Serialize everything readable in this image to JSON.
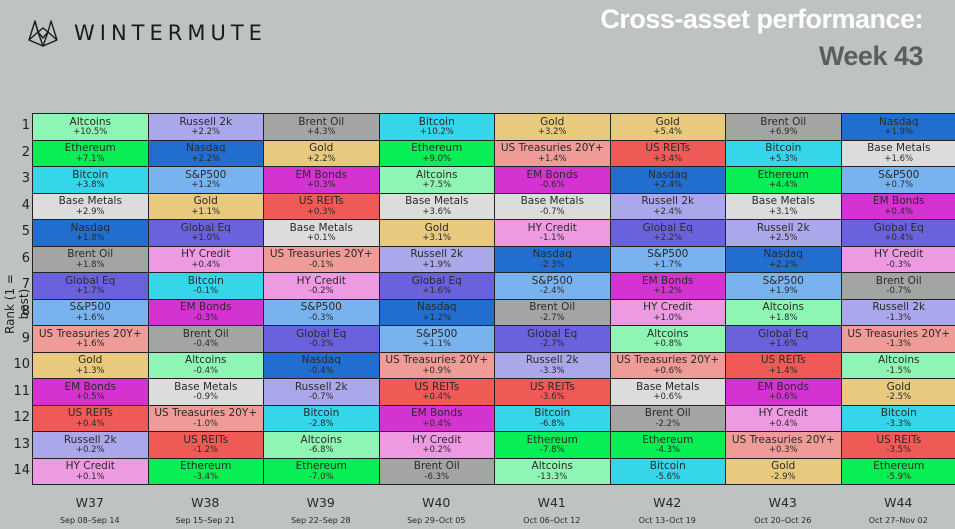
{
  "header": {
    "brand": "WINTERMUTE",
    "logo_icon": "wintermute-fox-logo-icon",
    "title_line1": "Cross-asset performance:",
    "title_line2": "Week 43"
  },
  "colors": {
    "Altcoins": "#8ff5b4",
    "Ethereum": "#07ef55",
    "Bitcoin": "#35d6ea",
    "Base Metals": "#dcdcdc",
    "Nasdaq": "#226ecf",
    "Brent Oil": "#a3a5a3",
    "Global Eq": "#6a62dc",
    "S&P500": "#79b3ef",
    "US Treasuries 20Y+": "#ef9c98",
    "Gold": "#e8c97e",
    "EM Bonds": "#d433d1",
    "US REITs": "#ef5a57",
    "Russell 2k": "#aaa8ea",
    "HY Credit": "#ee9ae3"
  },
  "chart_data": {
    "type": "table",
    "title": "Cross-asset performance: Week 43",
    "ylabel": "Rank (1 = best)",
    "xlabel": "",
    "ranks": [
      1,
      2,
      3,
      4,
      5,
      6,
      7,
      8,
      9,
      10,
      11,
      12,
      13,
      14
    ],
    "columns": [
      {
        "week": "W37",
        "range": "Sep 08–Sep 14",
        "cells": [
          {
            "asset": "Altcoins",
            "value": "+10.5%"
          },
          {
            "asset": "Ethereum",
            "value": "+7.1%"
          },
          {
            "asset": "Bitcoin",
            "value": "+3.8%"
          },
          {
            "asset": "Base Metals",
            "value": "+2.9%"
          },
          {
            "asset": "Nasdaq",
            "value": "+1.8%"
          },
          {
            "asset": "Brent Oil",
            "value": "+1.8%"
          },
          {
            "asset": "Global Eq",
            "value": "+1.7%"
          },
          {
            "asset": "S&P500",
            "value": "+1.6%"
          },
          {
            "asset": "US Treasuries 20Y+",
            "value": "+1.6%"
          },
          {
            "asset": "Gold",
            "value": "+1.3%"
          },
          {
            "asset": "EM Bonds",
            "value": "+0.5%"
          },
          {
            "asset": "US REITs",
            "value": "+0.4%"
          },
          {
            "asset": "Russell 2k",
            "value": "+0.2%"
          },
          {
            "asset": "HY Credit",
            "value": "+0.1%"
          }
        ]
      },
      {
        "week": "W38",
        "range": "Sep 15–Sep 21",
        "cells": [
          {
            "asset": "Russell 2k",
            "value": "+2.2%"
          },
          {
            "asset": "Nasdaq",
            "value": "+2.2%"
          },
          {
            "asset": "S&P500",
            "value": "+1.2%"
          },
          {
            "asset": "Gold",
            "value": "+1.1%"
          },
          {
            "asset": "Global Eq",
            "value": "+1.0%"
          },
          {
            "asset": "HY Credit",
            "value": "+0.4%"
          },
          {
            "asset": "Bitcoin",
            "value": "-0.1%"
          },
          {
            "asset": "EM Bonds",
            "value": "-0.3%"
          },
          {
            "asset": "Brent Oil",
            "value": "-0.4%"
          },
          {
            "asset": "Altcoins",
            "value": "-0.4%"
          },
          {
            "asset": "Base Metals",
            "value": "-0.9%"
          },
          {
            "asset": "US Treasuries 20Y+",
            "value": "-1.0%"
          },
          {
            "asset": "US REITs",
            "value": "-1.2%"
          },
          {
            "asset": "Ethereum",
            "value": "-3.4%"
          }
        ]
      },
      {
        "week": "W39",
        "range": "Sep 22–Sep 28",
        "cells": [
          {
            "asset": "Brent Oil",
            "value": "+4.3%"
          },
          {
            "asset": "Gold",
            "value": "+2.2%"
          },
          {
            "asset": "EM Bonds",
            "value": "+0.3%"
          },
          {
            "asset": "US REITs",
            "value": "+0.3%"
          },
          {
            "asset": "Base Metals",
            "value": "+0.1%"
          },
          {
            "asset": "US Treasuries 20Y+",
            "value": "-0.1%"
          },
          {
            "asset": "HY Credit",
            "value": "-0.2%"
          },
          {
            "asset": "S&P500",
            "value": "-0.3%"
          },
          {
            "asset": "Global Eq",
            "value": "-0.3%"
          },
          {
            "asset": "Nasdaq",
            "value": "-0.4%"
          },
          {
            "asset": "Russell 2k",
            "value": "-0.7%"
          },
          {
            "asset": "Bitcoin",
            "value": "-2.8%"
          },
          {
            "asset": "Altcoins",
            "value": "-6.8%"
          },
          {
            "asset": "Ethereum",
            "value": "-7.0%"
          }
        ]
      },
      {
        "week": "W40",
        "range": "Sep 29–Oct 05",
        "cells": [
          {
            "asset": "Bitcoin",
            "value": "+10.2%"
          },
          {
            "asset": "Ethereum",
            "value": "+9.0%"
          },
          {
            "asset": "Altcoins",
            "value": "+7.5%"
          },
          {
            "asset": "Base Metals",
            "value": "+3.6%"
          },
          {
            "asset": "Gold",
            "value": "+3.1%"
          },
          {
            "asset": "Russell 2k",
            "value": "+1.9%"
          },
          {
            "asset": "Global Eq",
            "value": "+1.6%"
          },
          {
            "asset": "Nasdaq",
            "value": "+1.2%"
          },
          {
            "asset": "S&P500",
            "value": "+1.1%"
          },
          {
            "asset": "US Treasuries 20Y+",
            "value": "+0.9%"
          },
          {
            "asset": "US REITs",
            "value": "+0.4%"
          },
          {
            "asset": "EM Bonds",
            "value": "+0.4%"
          },
          {
            "asset": "HY Credit",
            "value": "+0.2%"
          },
          {
            "asset": "Brent Oil",
            "value": "-6.3%"
          }
        ]
      },
      {
        "week": "W41",
        "range": "Oct 06–Oct 12",
        "cells": [
          {
            "asset": "Gold",
            "value": "+3.2%"
          },
          {
            "asset": "US Treasuries 20Y+",
            "value": "+1.4%"
          },
          {
            "asset": "EM Bonds",
            "value": "-0.6%"
          },
          {
            "asset": "Base Metals",
            "value": "-0.7%"
          },
          {
            "asset": "HY Credit",
            "value": "-1.1%"
          },
          {
            "asset": "Nasdaq",
            "value": "-2.3%"
          },
          {
            "asset": "S&P500",
            "value": "-2.4%"
          },
          {
            "asset": "Brent Oil",
            "value": "-2.7%"
          },
          {
            "asset": "Global Eq",
            "value": "-2.7%"
          },
          {
            "asset": "Russell 2k",
            "value": "-3.3%"
          },
          {
            "asset": "US REITs",
            "value": "-3.6%"
          },
          {
            "asset": "Bitcoin",
            "value": "-6.8%"
          },
          {
            "asset": "Ethereum",
            "value": "-7.8%"
          },
          {
            "asset": "Altcoins",
            "value": "-13.3%"
          }
        ]
      },
      {
        "week": "W42",
        "range": "Oct 13–Oct 19",
        "cells": [
          {
            "asset": "Gold",
            "value": "+5.4%"
          },
          {
            "asset": "US REITs",
            "value": "+3.4%"
          },
          {
            "asset": "Nasdaq",
            "value": "+2.4%"
          },
          {
            "asset": "Russell 2k",
            "value": "+2.4%"
          },
          {
            "asset": "Global Eq",
            "value": "+2.2%"
          },
          {
            "asset": "S&P500",
            "value": "+1.7%"
          },
          {
            "asset": "EM Bonds",
            "value": "+1.2%"
          },
          {
            "asset": "HY Credit",
            "value": "+1.0%"
          },
          {
            "asset": "Altcoins",
            "value": "+0.8%"
          },
          {
            "asset": "US Treasuries 20Y+",
            "value": "+0.6%"
          },
          {
            "asset": "Base Metals",
            "value": "+0.6%"
          },
          {
            "asset": "Brent Oil",
            "value": "-2.2%"
          },
          {
            "asset": "Ethereum",
            "value": "-4.3%"
          },
          {
            "asset": "Bitcoin",
            "value": "-5.6%"
          }
        ]
      },
      {
        "week": "W43",
        "range": "Oct 20–Oct 26",
        "cells": [
          {
            "asset": "Brent Oil",
            "value": "+6.9%"
          },
          {
            "asset": "Bitcoin",
            "value": "+5.3%"
          },
          {
            "asset": "Ethereum",
            "value": "+4.4%"
          },
          {
            "asset": "Base Metals",
            "value": "+3.1%"
          },
          {
            "asset": "Russell 2k",
            "value": "+2.5%"
          },
          {
            "asset": "Nasdaq",
            "value": "+2.2%"
          },
          {
            "asset": "S&P500",
            "value": "+1.9%"
          },
          {
            "asset": "Altcoins",
            "value": "+1.8%"
          },
          {
            "asset": "Global Eq",
            "value": "+1.6%"
          },
          {
            "asset": "US REITs",
            "value": "+1.4%"
          },
          {
            "asset": "EM Bonds",
            "value": "+0.6%"
          },
          {
            "asset": "HY Credit",
            "value": "+0.4%"
          },
          {
            "asset": "US Treasuries 20Y+",
            "value": "+0.3%"
          },
          {
            "asset": "Gold",
            "value": "-2.9%"
          }
        ]
      },
      {
        "week": "W44",
        "range": "Oct 27–Nov 02",
        "cells": [
          {
            "asset": "Nasdaq",
            "value": "+1.9%"
          },
          {
            "asset": "Base Metals",
            "value": "+1.6%"
          },
          {
            "asset": "S&P500",
            "value": "+0.7%"
          },
          {
            "asset": "EM Bonds",
            "value": "+0.4%"
          },
          {
            "asset": "Global Eq",
            "value": "+0.4%"
          },
          {
            "asset": "HY Credit",
            "value": "-0.3%"
          },
          {
            "asset": "Brent Oil",
            "value": "-0.7%"
          },
          {
            "asset": "Russell 2k",
            "value": "-1.3%"
          },
          {
            "asset": "US Treasuries 20Y+",
            "value": "-1.3%"
          },
          {
            "asset": "Altcoins",
            "value": "-1.5%"
          },
          {
            "asset": "Gold",
            "value": "-2.5%"
          },
          {
            "asset": "Bitcoin",
            "value": "-3.3%"
          },
          {
            "asset": "US REITs",
            "value": "-3.5%"
          },
          {
            "asset": "Ethereum",
            "value": "-5.9%"
          }
        ]
      }
    ]
  }
}
